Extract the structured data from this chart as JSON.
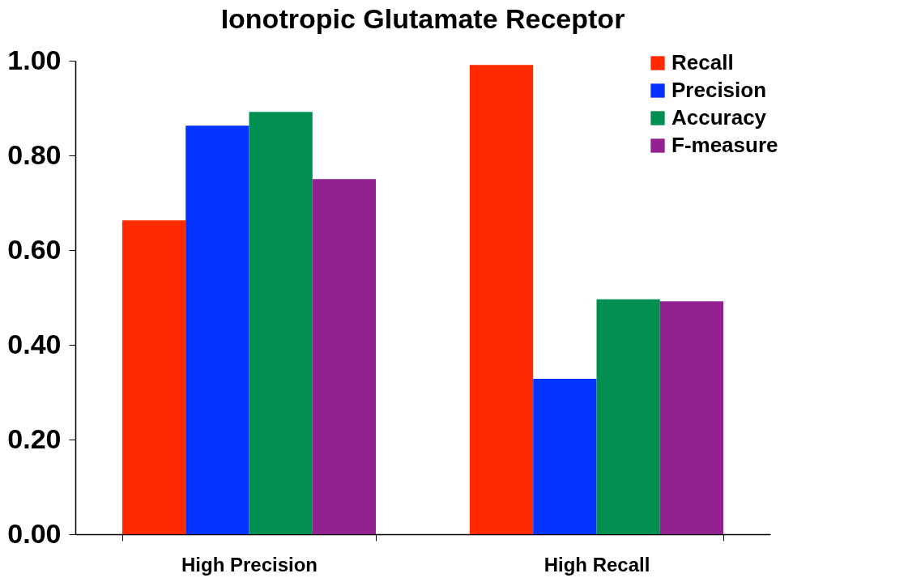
{
  "chart_data": {
    "type": "bar",
    "title": "Ionotropic Glutamate Receptor",
    "categories": [
      "High Precision",
      "High Recall"
    ],
    "series": [
      {
        "name": "Recall",
        "color": "#ff2a00",
        "values": [
          0.663,
          0.991
        ]
      },
      {
        "name": "Precision",
        "color": "#0433ff",
        "values": [
          0.863,
          0.328
        ]
      },
      {
        "name": "Accuracy",
        "color": "#008f51",
        "values": [
          0.892,
          0.496
        ]
      },
      {
        "name": "F-measure",
        "color": "#942192",
        "values": [
          0.75,
          0.492
        ]
      }
    ],
    "ylim": [
      0,
      1
    ],
    "yticks": [
      {
        "value": 0,
        "label": "0.00"
      },
      {
        "value": 0.2,
        "label": "0.20"
      },
      {
        "value": 0.4,
        "label": "0.40"
      },
      {
        "value": 0.6,
        "label": "0.60"
      },
      {
        "value": 0.8,
        "label": "0.80"
      },
      {
        "value": 1,
        "label": "1.00"
      }
    ],
    "grid": false,
    "legend": "top right"
  }
}
